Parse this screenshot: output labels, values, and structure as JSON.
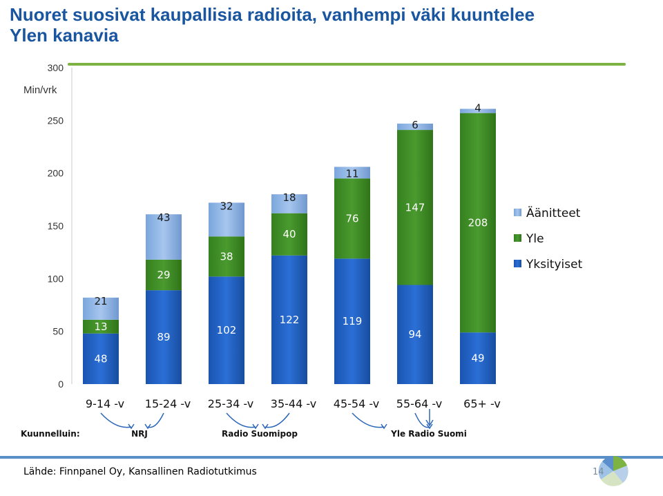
{
  "title": "Nuoret suosivat kaupallisia radioita, vanhempi väki kuuntelee Ylen kanavia",
  "source": "Lähde: Finnpanel Oy, Kansallinen Radiotutkimus",
  "page_number": "14",
  "colors": {
    "title": "#1a56a0",
    "accent_line": "#7cb342",
    "footer_line": "#5b8fc7",
    "yksityiset": "#1f5fbf",
    "yle": "#3d8b27",
    "aanitteet": "#8fb4e3"
  },
  "listeners": {
    "label": "Kuunnelluin:",
    "stations": [
      "NRJ",
      "Radio Suomipop",
      "Yle Radio Suomi"
    ]
  },
  "chart_data": {
    "type": "bar",
    "stacked": true,
    "title": "",
    "ylabel": "Min/vrk",
    "xlabel": "",
    "ylim": [
      0,
      300
    ],
    "yticks": [
      "0",
      "50",
      "100",
      "150",
      "200",
      "250",
      "300"
    ],
    "categories": [
      "9-14 -v",
      "15-24 -v",
      "25-34 -v",
      "35-44 -v",
      "45-54 -v",
      "55-64 -v",
      "65+ -v"
    ],
    "series": [
      {
        "name": "Yksityiset",
        "values": [
          48,
          89,
          102,
          122,
          119,
          94,
          49
        ]
      },
      {
        "name": "Yle",
        "values": [
          13,
          29,
          38,
          40,
          76,
          147,
          208
        ]
      },
      {
        "name": "Äänitteet",
        "values": [
          21,
          43,
          32,
          18,
          11,
          6,
          4
        ]
      }
    ],
    "legend_position": "right",
    "grid": false
  }
}
